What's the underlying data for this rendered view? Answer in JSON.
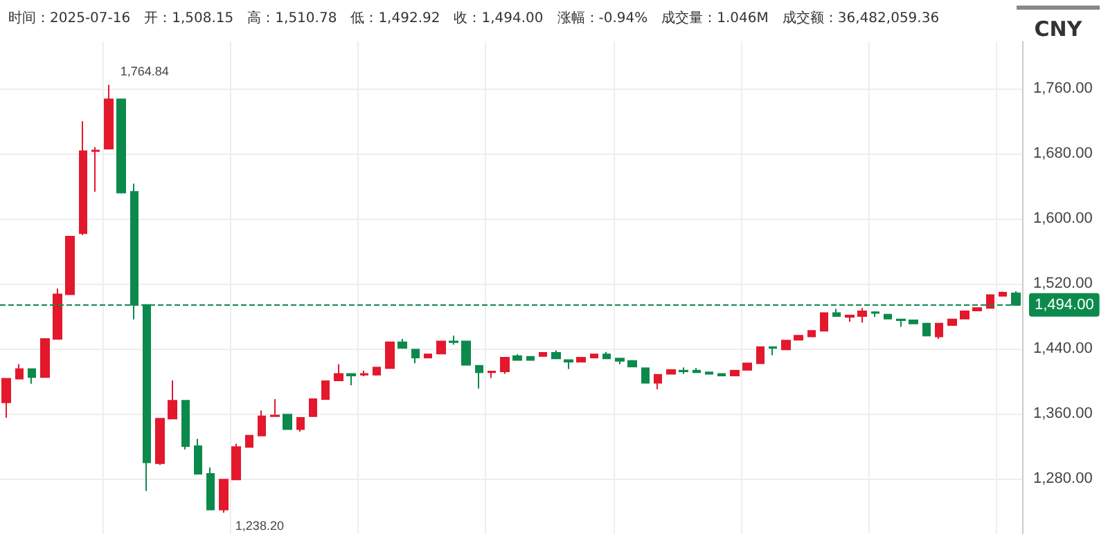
{
  "chart_data": {
    "type": "candlestick",
    "categories": [
      null,
      null,
      null,
      null,
      null,
      null,
      null,
      null,
      null,
      null,
      null,
      null,
      null,
      null,
      null,
      null,
      null,
      null,
      null,
      null,
      null,
      null,
      null,
      null,
      null,
      null,
      null,
      null,
      null,
      null,
      null,
      null,
      null,
      null,
      null,
      null,
      null,
      null,
      null,
      null,
      null,
      null,
      null,
      null,
      null,
      null,
      null,
      null,
      null,
      null,
      null,
      null,
      null,
      null,
      null,
      null,
      null,
      null,
      null,
      null,
      null,
      null,
      null,
      null,
      null,
      null,
      null,
      null,
      null,
      null,
      null,
      null,
      null,
      null,
      null,
      null,
      null,
      null,
      null,
      null
    ],
    "ohlc": [
      [
        1374,
        1403,
        1355,
        1403
      ],
      [
        1403,
        1421,
        1403,
        1415
      ],
      [
        1415,
        1415,
        1397,
        1405
      ],
      [
        1405,
        1452,
        1405,
        1452
      ],
      [
        1452,
        1514,
        1452,
        1507
      ],
      [
        1507,
        1578,
        1507,
        1578
      ],
      [
        1582,
        1720,
        1580,
        1683
      ],
      [
        1683,
        1688,
        1633,
        1684
      ],
      [
        1686,
        1764.84,
        1686,
        1747
      ],
      [
        1747,
        1747,
        1631,
        1632
      ],
      [
        1633,
        1643,
        1476,
        1494
      ],
      [
        1494,
        1494,
        1265,
        1300
      ],
      [
        1299,
        1354,
        1297,
        1354
      ],
      [
        1354,
        1401,
        1354,
        1376
      ],
      [
        1376,
        1376,
        1316,
        1320
      ],
      [
        1320,
        1329,
        1286,
        1286
      ],
      [
        1286,
        1294,
        1242,
        1242
      ],
      [
        1242,
        1279,
        1238.2,
        1279
      ],
      [
        1279,
        1323,
        1279,
        1319
      ],
      [
        1319,
        1333,
        1319,
        1333
      ],
      [
        1333,
        1364,
        1333,
        1357
      ],
      [
        1357,
        1378,
        1357,
        1358
      ],
      [
        1359,
        1359,
        1341,
        1341
      ],
      [
        1341,
        1355,
        1338,
        1355
      ],
      [
        1357,
        1378,
        1357,
        1378
      ],
      [
        1378,
        1400,
        1378,
        1400
      ],
      [
        1401,
        1421,
        1401,
        1409
      ],
      [
        1409,
        1409,
        1395,
        1407
      ],
      [
        1408,
        1413,
        1406,
        1409
      ],
      [
        1408,
        1417,
        1407,
        1417
      ],
      [
        1416,
        1448,
        1416,
        1448
      ],
      [
        1448,
        1452,
        1441,
        1441
      ],
      [
        1439,
        1439,
        1422,
        1429
      ],
      [
        1429,
        1433,
        1429,
        1433
      ],
      [
        1434,
        1449,
        1434,
        1449
      ],
      [
        1449,
        1456,
        1445,
        1448
      ],
      [
        1449,
        1449,
        1420,
        1420
      ],
      [
        1419,
        1419,
        1391,
        1411
      ],
      [
        1411,
        1412,
        1404,
        1412
      ],
      [
        1412,
        1429,
        1409,
        1429
      ],
      [
        1431,
        1433,
        1426,
        1426
      ],
      [
        1430,
        1430,
        1426,
        1426
      ],
      [
        1431,
        1435,
        1431,
        1435
      ],
      [
        1435,
        1438,
        1428,
        1428
      ],
      [
        1426,
        1427,
        1415,
        1424
      ],
      [
        1424,
        1429,
        1424,
        1429
      ],
      [
        1429,
        1433,
        1429,
        1433
      ],
      [
        1433,
        1436,
        1428,
        1428
      ],
      [
        1428,
        1428,
        1421,
        1425
      ],
      [
        1425,
        1426,
        1418,
        1418
      ],
      [
        1416,
        1416,
        1398,
        1398
      ],
      [
        1398,
        1408,
        1390,
        1408
      ],
      [
        1409,
        1414,
        1409,
        1414
      ],
      [
        1413,
        1417,
        1409,
        1412
      ],
      [
        1413,
        1416,
        1411,
        1411
      ],
      [
        1411,
        1411,
        1409,
        1409
      ],
      [
        1409,
        1409,
        1407,
        1407
      ],
      [
        1407,
        1413,
        1407,
        1413
      ],
      [
        1414,
        1422,
        1414,
        1422
      ],
      [
        1422,
        1442,
        1422,
        1442
      ],
      [
        1442,
        1442,
        1432,
        1441
      ],
      [
        1439,
        1450,
        1439,
        1450
      ],
      [
        1451,
        1456,
        1451,
        1456
      ],
      [
        1455,
        1462,
        1455,
        1462
      ],
      [
        1462,
        1484,
        1462,
        1484
      ],
      [
        1484,
        1489,
        1480,
        1480
      ],
      [
        1479,
        1481,
        1473,
        1481
      ],
      [
        1480,
        1490,
        1472,
        1486
      ],
      [
        1485,
        1486,
        1479,
        1484
      ],
      [
        1482,
        1482,
        1477,
        1477
      ],
      [
        1476,
        1476,
        1467,
        1475
      ],
      [
        1475,
        1475,
        1471,
        1471
      ],
      [
        1471,
        1471,
        1456,
        1456
      ],
      [
        1455,
        1471,
        1452,
        1471
      ],
      [
        1469,
        1476,
        1469,
        1476
      ],
      [
        1477,
        1486,
        1477,
        1486
      ],
      [
        1487,
        1490,
        1487,
        1490
      ],
      [
        1490,
        1506,
        1490,
        1506
      ],
      [
        1505,
        1510.4,
        1505,
        1509
      ],
      [
        1508.15,
        1510.78,
        1492.92,
        1494
      ]
    ],
    "colors": [
      "#e3182d",
      "#e3182d",
      "#0b8a4c",
      "#e3182d",
      "#e3182d",
      "#e3182d",
      "#e3182d",
      "#e3182d",
      "#e3182d",
      "#0b8a4c",
      "#0b8a4c",
      "#0b8a4c",
      "#e3182d",
      "#e3182d",
      "#0b8a4c",
      "#0b8a4c",
      "#0b8a4c",
      "#e3182d",
      "#e3182d",
      "#e3182d",
      "#e3182d",
      "#e3182d",
      "#0b8a4c",
      "#e3182d",
      "#e3182d",
      "#e3182d",
      "#e3182d",
      "#0b8a4c",
      "#e3182d",
      "#e3182d",
      "#e3182d",
      "#0b8a4c",
      "#0b8a4c",
      "#e3182d",
      "#e3182d",
      "#0b8a4c",
      "#0b8a4c",
      "#0b8a4c",
      "#e3182d",
      "#e3182d",
      "#0b8a4c",
      "#0b8a4c",
      "#e3182d",
      "#0b8a4c",
      "#0b8a4c",
      "#e3182d",
      "#e3182d",
      "#0b8a4c",
      "#0b8a4c",
      "#0b8a4c",
      "#0b8a4c",
      "#e3182d",
      "#e3182d",
      "#0b8a4c",
      "#0b8a4c",
      "#0b8a4c",
      "#0b8a4c",
      "#e3182d",
      "#e3182d",
      "#e3182d",
      "#0b8a4c",
      "#e3182d",
      "#e3182d",
      "#e3182d",
      "#e3182d",
      "#0b8a4c",
      "#e3182d",
      "#e3182d",
      "#0b8a4c",
      "#0b8a4c",
      "#0b8a4c",
      "#0b8a4c",
      "#0b8a4c",
      "#e3182d",
      "#e3182d",
      "#e3182d",
      "#e3182d",
      "#e3182d",
      "#e3182d",
      "#0b8a4c"
    ],
    "ylim": [
      1212,
      1818
    ],
    "yticks": [
      {
        "value": 1280,
        "label": "1,280.00"
      },
      {
        "value": 1360,
        "label": "1,360.00"
      },
      {
        "value": 1440,
        "label": "1,440.00"
      },
      {
        "value": 1520,
        "label": "1,520.00"
      },
      {
        "value": 1600,
        "label": "1,600.00"
      },
      {
        "value": 1680,
        "label": "1,680.00"
      },
      {
        "value": 1760,
        "label": "1,760.00"
      }
    ],
    "grid": true,
    "ref_lines": [
      {
        "axis": "y",
        "value": 1494,
        "label": "1,494.00",
        "color": "#0b8a4c",
        "line_style": "dashed"
      }
    ],
    "annotations": [
      "时间：2025-07-16",
      "开：1,508.15",
      "高：1,510.78",
      "低：1,492.92",
      "收：1,494.00",
      "涨幅：-0.94%",
      "成交量：1.046M",
      "成交额：36,482,059.36",
      "CNY",
      "1,764.84",
      "1,238.20"
    ]
  }
}
